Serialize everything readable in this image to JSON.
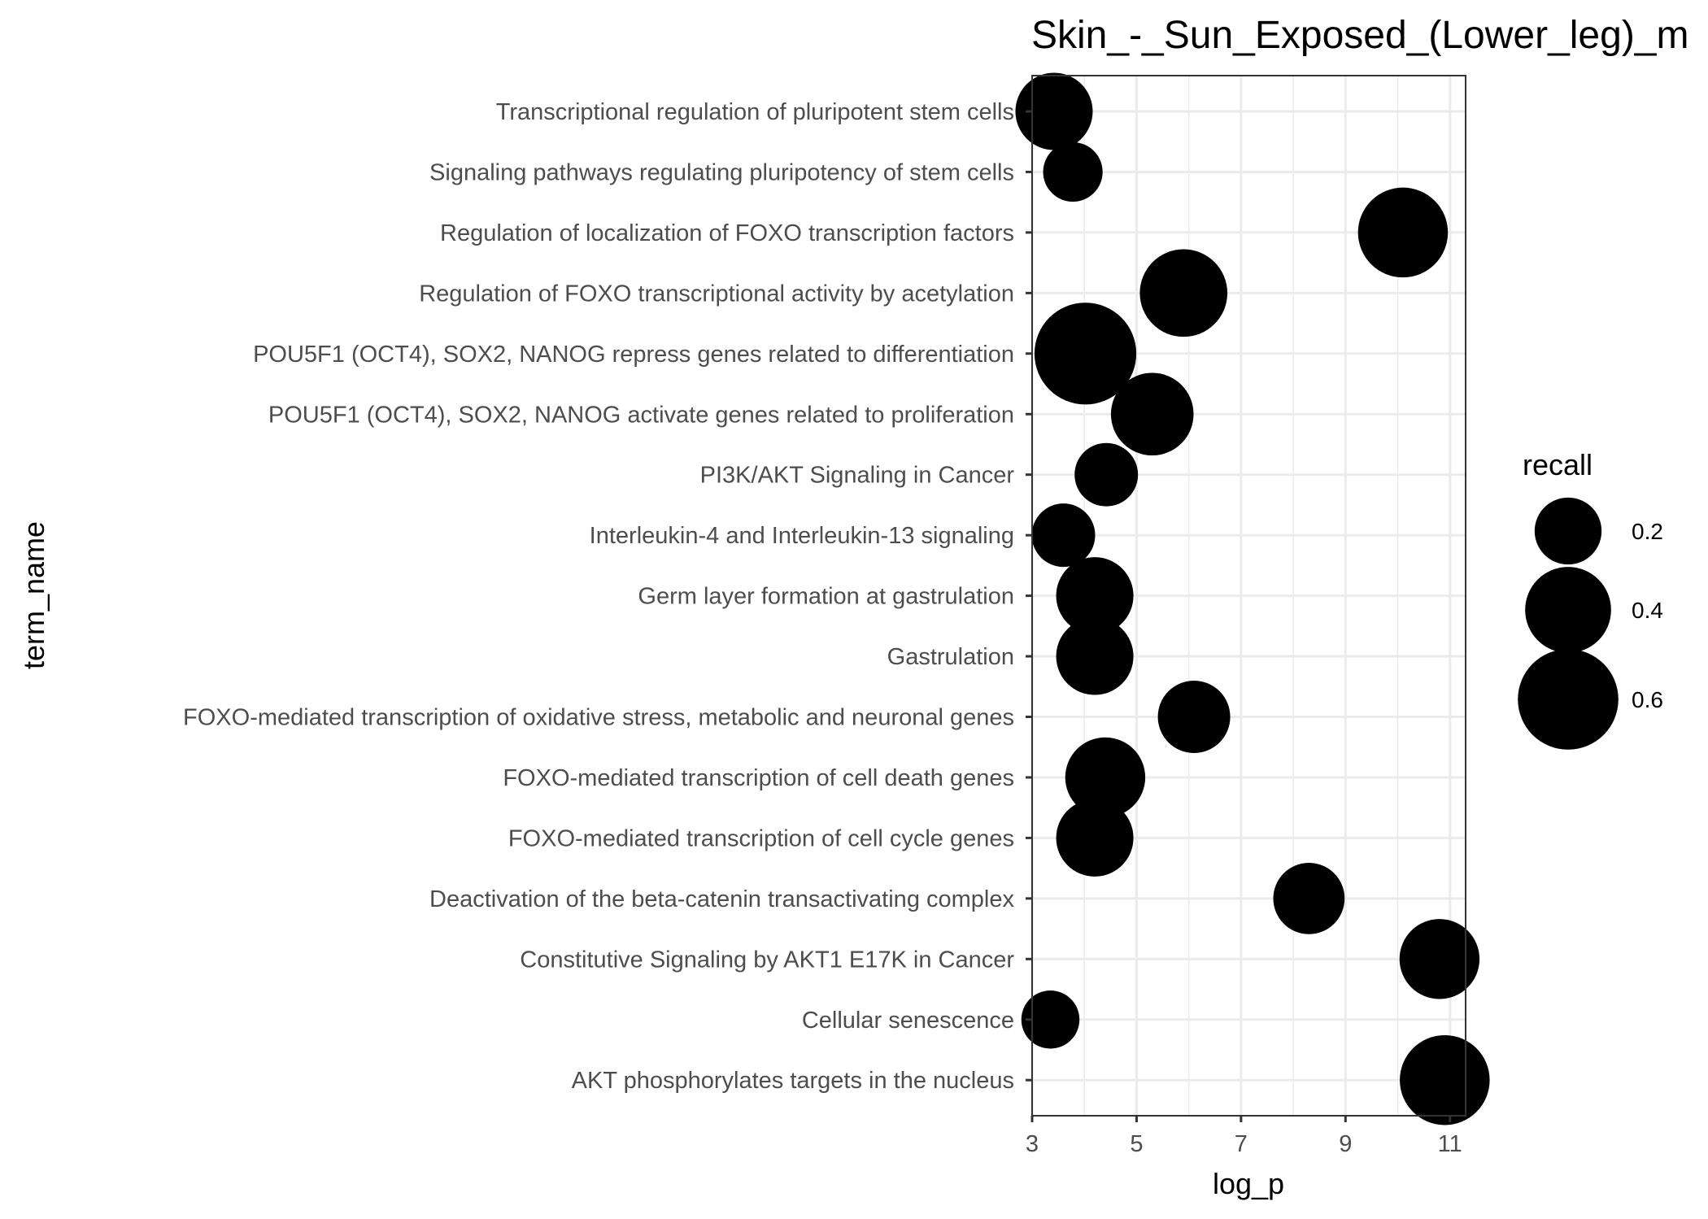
{
  "chart_data": {
    "type": "scatter",
    "title": "Skin_-_Sun_Exposed_(Lower_leg)_m",
    "xlabel": "log_p",
    "ylabel": "term_name",
    "xlim": [
      3,
      11.3
    ],
    "xticks": [
      3,
      5,
      7,
      9,
      11
    ],
    "grid": true,
    "legend": {
      "title": "recall",
      "placement": "right",
      "entries": [
        {
          "label": "0.2",
          "value": 0.2
        },
        {
          "label": "0.4",
          "value": 0.4
        },
        {
          "label": "0.6",
          "value": 0.6
        }
      ]
    },
    "categories": [
      "Transcriptional regulation of pluripotent stem cells",
      "Signaling pathways regulating pluripotency of stem cells",
      "Regulation of localization of FOXO transcription factors",
      "Regulation of FOXO transcriptional activity by acetylation",
      "POU5F1 (OCT4), SOX2, NANOG repress genes related to differentiation",
      "POU5F1 (OCT4), SOX2, NANOG activate genes related to proliferation",
      "PI3K/AKT Signaling in Cancer",
      "Interleukin-4 and Interleukin-13 signaling",
      "Germ layer formation at gastrulation",
      "Gastrulation",
      "FOXO-mediated transcription of oxidative stress, metabolic and neuronal genes",
      "FOXO-mediated transcription of cell death genes",
      "FOXO-mediated transcription of cell cycle genes",
      "Deactivation of the beta-catenin transactivating complex",
      "Constitutive Signaling by AKT1 E17K in Cancer",
      "Cellular senescence",
      "AKT phosphorylates targets in the nucleus"
    ],
    "points": [
      {
        "term": "Transcriptional regulation of pluripotent stem cells",
        "log_p": 3.42,
        "recall": 0.3
      },
      {
        "term": "Signaling pathways regulating pluripotency of stem cells",
        "log_p": 3.78,
        "recall": 0.14
      },
      {
        "term": "Regulation of localization of FOXO transcription factors",
        "log_p": 10.1,
        "recall": 0.45
      },
      {
        "term": "Regulation of FOXO transcriptional activity by acetylation",
        "log_p": 5.9,
        "recall": 0.42
      },
      {
        "term": "POU5F1 (OCT4), SOX2, NANOG repress genes related to differentiation",
        "log_p": 4.02,
        "recall": 0.62
      },
      {
        "term": "POU5F1 (OCT4), SOX2, NANOG activate genes related to proliferation",
        "log_p": 5.3,
        "recall": 0.36
      },
      {
        "term": "PI3K/AKT Signaling in Cancer",
        "log_p": 4.42,
        "recall": 0.17
      },
      {
        "term": "Interleukin-4 and Interleukin-13 signaling",
        "log_p": 3.6,
        "recall": 0.17
      },
      {
        "term": "Germ layer formation at gastrulation",
        "log_p": 4.2,
        "recall": 0.3
      },
      {
        "term": "Gastrulation",
        "log_p": 4.2,
        "recall": 0.3
      },
      {
        "term": "FOXO-mediated transcription of oxidative stress, metabolic and neuronal genes",
        "log_p": 6.1,
        "recall": 0.25
      },
      {
        "term": "FOXO-mediated transcription of cell death genes",
        "log_p": 4.4,
        "recall": 0.33
      },
      {
        "term": "FOXO-mediated transcription of cell cycle genes",
        "log_p": 4.2,
        "recall": 0.3
      },
      {
        "term": "Deactivation of the beta-catenin transactivating complex",
        "log_p": 8.3,
        "recall": 0.24
      },
      {
        "term": "Constitutive Signaling by AKT1 E17K in Cancer",
        "log_p": 10.8,
        "recall": 0.33
      },
      {
        "term": "Cellular senescence",
        "log_p": 3.35,
        "recall": 0.13
      },
      {
        "term": "AKT phosphorylates targets in the nucleus",
        "log_p": 10.9,
        "recall": 0.45
      }
    ]
  }
}
